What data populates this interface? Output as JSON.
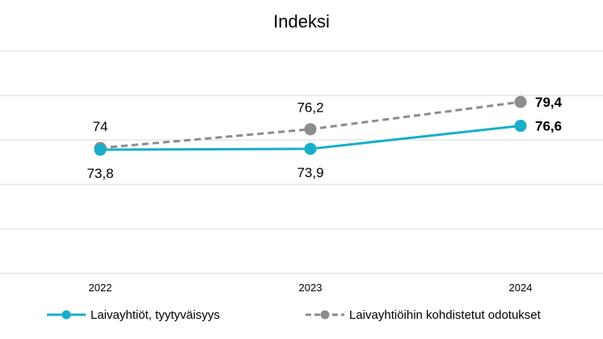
{
  "chart_data": {
    "type": "line",
    "title": "Indeksi",
    "categories": [
      "2022",
      "2023",
      "2024"
    ],
    "series": [
      {
        "name": "Laivayhtiöt, tyytyväisyys",
        "values": [
          73.8,
          73.9,
          76.6
        ],
        "labels": [
          "73,8",
          "73,9",
          "76,6"
        ],
        "color": "#1aaec8",
        "style": "solid"
      },
      {
        "name": "Laivayhtiöihin kohdistetut odotukset",
        "values": [
          74,
          76.2,
          79.4
        ],
        "labels": [
          "74",
          "76,2",
          "79,4"
        ],
        "color": "#8c8c8c",
        "style": "dashed"
      }
    ],
    "bold_last_label": true,
    "grid": true,
    "legend": "bottom"
  }
}
